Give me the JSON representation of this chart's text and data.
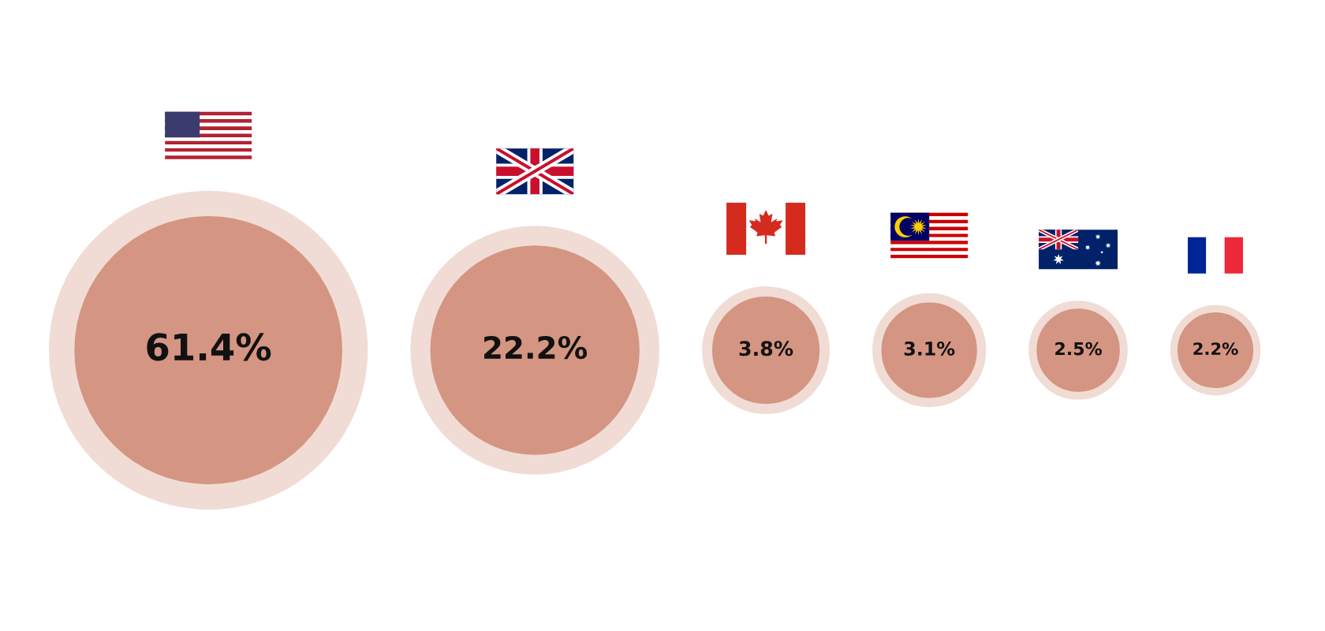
{
  "chart_data": {
    "type": "other",
    "categories": [
      null,
      null,
      null,
      null,
      null,
      null
    ],
    "values": [
      61.4,
      22.2,
      3.8,
      3.1,
      2.5,
      2.2
    ],
    "value_labels": [
      "61.4%",
      "22.2%",
      "3.8%",
      "3.1%",
      "2.5%",
      "2.2%"
    ],
    "color": "#d49582"
  }
}
